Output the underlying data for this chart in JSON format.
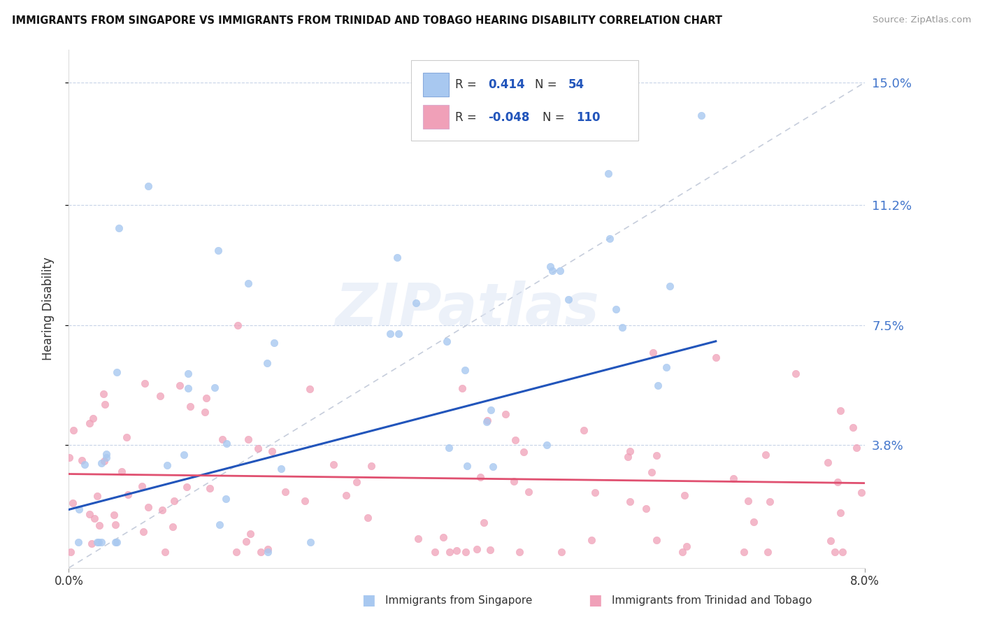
{
  "title": "IMMIGRANTS FROM SINGAPORE VS IMMIGRANTS FROM TRINIDAD AND TOBAGO HEARING DISABILITY CORRELATION CHART",
  "source": "Source: ZipAtlas.com",
  "ylabel": "Hearing Disability",
  "xlim": [
    0.0,
    0.08
  ],
  "ylim": [
    0.0,
    0.16
  ],
  "r_singapore": 0.414,
  "n_singapore": 54,
  "r_trinidad": -0.048,
  "n_trinidad": 110,
  "color_singapore": "#a8c8f0",
  "color_trinidad": "#f0a0b8",
  "color_blue_line": "#2255bb",
  "color_pink_line": "#e05070",
  "color_dashed": "#c0c8d8",
  "legend_label_singapore": "Immigrants from Singapore",
  "legend_label_trinidad": "Immigrants from Trinidad and Tobago",
  "ytick_vals": [
    0.038,
    0.075,
    0.112,
    0.15
  ],
  "ytick_labels": [
    "3.8%",
    "7.5%",
    "11.2%",
    "15.0%"
  ],
  "seed": 12345
}
